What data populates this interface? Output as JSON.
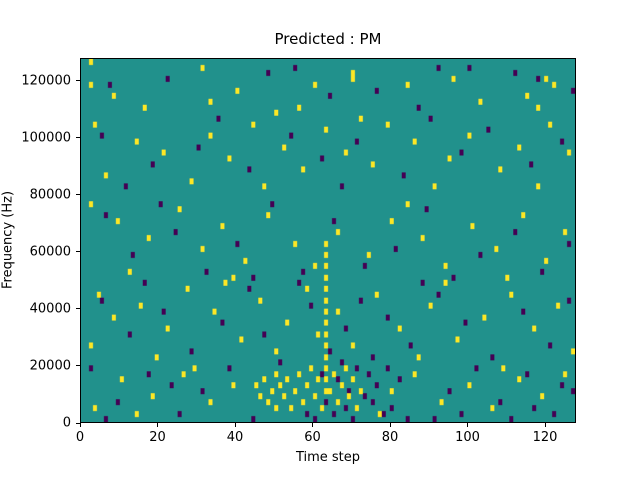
{
  "title": "Predicted : PM",
  "xlabel": "Time step",
  "ylabel": "Frequency (Hz)",
  "chart_data": {
    "type": "heatmap",
    "title": "Predicted : PM",
    "xlabel": "Time step",
    "ylabel": "Frequency (Hz)",
    "x_range": [
      0,
      128
    ],
    "y_range": [
      0,
      128000
    ],
    "x_ticks": [
      0,
      20,
      40,
      60,
      80,
      100,
      120
    ],
    "y_ticks": [
      0,
      20000,
      40000,
      60000,
      80000,
      100000,
      120000
    ],
    "grid": {
      "nx": 128,
      "ny": 64,
      "freq_bin_hz": 2000
    },
    "colors": {
      "background": "#21918c",
      "high": "#fde725",
      "low": "#440154",
      "figure_bg": "#ffffff"
    },
    "legend": "none",
    "cells_high": [
      [
        2,
        63
      ],
      [
        2,
        59
      ],
      [
        31,
        62
      ],
      [
        70,
        61
      ],
      [
        70,
        60
      ],
      [
        60,
        59
      ],
      [
        120,
        60
      ],
      [
        122,
        59
      ],
      [
        115,
        57
      ],
      [
        40,
        58
      ],
      [
        16,
        55
      ],
      [
        33,
        56
      ],
      [
        84,
        59
      ],
      [
        103,
        56
      ],
      [
        8,
        57
      ],
      [
        56,
        55
      ],
      [
        96,
        60
      ],
      [
        118,
        55
      ],
      [
        3,
        52
      ],
      [
        14,
        49
      ],
      [
        21,
        47
      ],
      [
        33,
        50
      ],
      [
        38,
        46
      ],
      [
        44,
        52
      ],
      [
        52,
        48
      ],
      [
        57,
        44
      ],
      [
        63,
        51
      ],
      [
        68,
        47
      ],
      [
        75,
        45
      ],
      [
        79,
        52
      ],
      [
        86,
        49
      ],
      [
        95,
        46
      ],
      [
        100,
        50
      ],
      [
        108,
        44
      ],
      [
        113,
        48
      ],
      [
        121,
        52
      ],
      [
        126,
        47
      ],
      [
        6,
        43
      ],
      [
        28,
        42
      ],
      [
        47,
        41
      ],
      [
        91,
        41
      ],
      [
        118,
        41
      ],
      [
        72,
        53
      ],
      [
        50,
        54
      ],
      [
        2,
        38
      ],
      [
        9,
        35
      ],
      [
        17,
        32
      ],
      [
        25,
        37
      ],
      [
        31,
        30
      ],
      [
        36,
        34
      ],
      [
        42,
        28
      ],
      [
        48,
        36
      ],
      [
        55,
        31
      ],
      [
        60,
        27
      ],
      [
        66,
        33
      ],
      [
        74,
        29
      ],
      [
        80,
        35
      ],
      [
        88,
        32
      ],
      [
        94,
        27
      ],
      [
        101,
        34
      ],
      [
        107,
        30
      ],
      [
        114,
        36
      ],
      [
        120,
        28
      ],
      [
        125,
        33
      ],
      [
        12,
        26
      ],
      [
        39,
        25
      ],
      [
        84,
        38
      ],
      [
        110,
        25
      ],
      [
        63,
        31
      ],
      [
        63,
        29
      ],
      [
        63,
        27
      ],
      [
        63,
        25
      ],
      [
        63,
        23
      ],
      [
        63,
        21
      ],
      [
        63,
        19
      ],
      [
        63,
        17
      ],
      [
        63,
        15
      ],
      [
        63,
        13
      ],
      [
        63,
        11
      ],
      [
        63,
        9
      ],
      [
        63,
        7
      ],
      [
        63,
        5
      ],
      [
        4,
        22
      ],
      [
        8,
        18
      ],
      [
        15,
        20
      ],
      [
        22,
        16
      ],
      [
        27,
        23
      ],
      [
        34,
        19
      ],
      [
        41,
        14
      ],
      [
        46,
        21
      ],
      [
        50,
        12
      ],
      [
        53,
        17
      ],
      [
        58,
        23
      ],
      [
        61,
        15
      ],
      [
        66,
        19
      ],
      [
        70,
        13
      ],
      [
        76,
        22
      ],
      [
        82,
        16
      ],
      [
        90,
        20
      ],
      [
        97,
        14
      ],
      [
        104,
        18
      ],
      [
        111,
        22
      ],
      [
        117,
        16
      ],
      [
        123,
        20
      ],
      [
        127,
        12
      ],
      [
        2,
        13
      ],
      [
        19,
        11
      ],
      [
        37,
        24
      ],
      [
        87,
        11
      ],
      [
        94,
        24
      ],
      [
        45,
        6
      ],
      [
        46,
        4
      ],
      [
        47,
        7
      ],
      [
        48,
        3
      ],
      [
        49,
        5
      ],
      [
        50,
        8
      ],
      [
        50,
        2
      ],
      [
        51,
        6
      ],
      [
        52,
        4
      ],
      [
        53,
        7
      ],
      [
        54,
        2
      ],
      [
        55,
        5
      ],
      [
        56,
        8
      ],
      [
        57,
        3
      ],
      [
        58,
        6
      ],
      [
        59,
        9
      ],
      [
        60,
        4
      ],
      [
        61,
        7
      ],
      [
        62,
        2
      ],
      [
        64,
        5
      ],
      [
        65,
        8
      ],
      [
        66,
        3
      ],
      [
        67,
        6
      ],
      [
        68,
        9
      ],
      [
        69,
        4
      ],
      [
        70,
        7
      ],
      [
        71,
        2
      ],
      [
        72,
        5
      ],
      [
        3,
        2
      ],
      [
        10,
        7
      ],
      [
        18,
        4
      ],
      [
        26,
        8
      ],
      [
        33,
        3
      ],
      [
        39,
        6
      ],
      [
        80,
        5
      ],
      [
        86,
        8
      ],
      [
        93,
        3
      ],
      [
        100,
        6
      ],
      [
        106,
        2
      ],
      [
        113,
        7
      ],
      [
        119,
        4
      ],
      [
        125,
        8
      ],
      [
        14,
        1
      ],
      [
        29,
        9
      ],
      [
        77,
        1
      ],
      [
        109,
        9
      ]
    ],
    "cells_low": [
      [
        55,
        62
      ],
      [
        112,
        61
      ],
      [
        118,
        60
      ],
      [
        127,
        58
      ],
      [
        22,
        60
      ],
      [
        48,
        61
      ],
      [
        76,
        58
      ],
      [
        92,
        62
      ],
      [
        7,
        59
      ],
      [
        64,
        57
      ],
      [
        100,
        62
      ],
      [
        87,
        55
      ],
      [
        5,
        50
      ],
      [
        18,
        45
      ],
      [
        30,
        48
      ],
      [
        43,
        44
      ],
      [
        54,
        50
      ],
      [
        62,
        46
      ],
      [
        71,
        49
      ],
      [
        83,
        43
      ],
      [
        98,
        47
      ],
      [
        105,
        51
      ],
      [
        116,
        45
      ],
      [
        124,
        49
      ],
      [
        11,
        41
      ],
      [
        35,
        53
      ],
      [
        67,
        41
      ],
      [
        90,
        53
      ],
      [
        6,
        36
      ],
      [
        13,
        29
      ],
      [
        24,
        33
      ],
      [
        32,
        26
      ],
      [
        40,
        31
      ],
      [
        49,
        38
      ],
      [
        57,
        26
      ],
      [
        65,
        35
      ],
      [
        73,
        27
      ],
      [
        81,
        30
      ],
      [
        89,
        37
      ],
      [
        96,
        25
      ],
      [
        103,
        29
      ],
      [
        112,
        33
      ],
      [
        119,
        26
      ],
      [
        126,
        31
      ],
      [
        20,
        38
      ],
      [
        44,
        25
      ],
      [
        5,
        21
      ],
      [
        12,
        15
      ],
      [
        21,
        19
      ],
      [
        28,
        12
      ],
      [
        36,
        17
      ],
      [
        43,
        23
      ],
      [
        51,
        10
      ],
      [
        59,
        20
      ],
      [
        64,
        12
      ],
      [
        68,
        16
      ],
      [
        72,
        21
      ],
      [
        75,
        11
      ],
      [
        79,
        18
      ],
      [
        85,
        13
      ],
      [
        92,
        22
      ],
      [
        99,
        17
      ],
      [
        106,
        11
      ],
      [
        114,
        19
      ],
      [
        121,
        13
      ],
      [
        126,
        21
      ],
      [
        16,
        24
      ],
      [
        47,
        15
      ],
      [
        56,
        24
      ],
      [
        88,
        24
      ],
      [
        58,
        1
      ],
      [
        60,
        0
      ],
      [
        62,
        8
      ],
      [
        63,
        3
      ],
      [
        65,
        1
      ],
      [
        66,
        7
      ],
      [
        68,
        2
      ],
      [
        70,
        0
      ],
      [
        71,
        9
      ],
      [
        73,
        4
      ],
      [
        74,
        8
      ],
      [
        75,
        3
      ],
      [
        76,
        6
      ],
      [
        78,
        1
      ],
      [
        79,
        9
      ],
      [
        80,
        2
      ],
      [
        82,
        7
      ],
      [
        84,
        0
      ],
      [
        69,
        5
      ],
      [
        67,
        10
      ],
      [
        2,
        9
      ],
      [
        9,
        3
      ],
      [
        17,
        8
      ],
      [
        25,
        1
      ],
      [
        31,
        5
      ],
      [
        38,
        9
      ],
      [
        95,
        5
      ],
      [
        102,
        9
      ],
      [
        108,
        3
      ],
      [
        115,
        8
      ],
      [
        122,
        1
      ],
      [
        127,
        5
      ],
      [
        6,
        0
      ],
      [
        23,
        6
      ],
      [
        44,
        0
      ],
      [
        91,
        0
      ],
      [
        98,
        1
      ],
      [
        111,
        0
      ],
      [
        117,
        2
      ],
      [
        124,
        6
      ]
    ]
  }
}
